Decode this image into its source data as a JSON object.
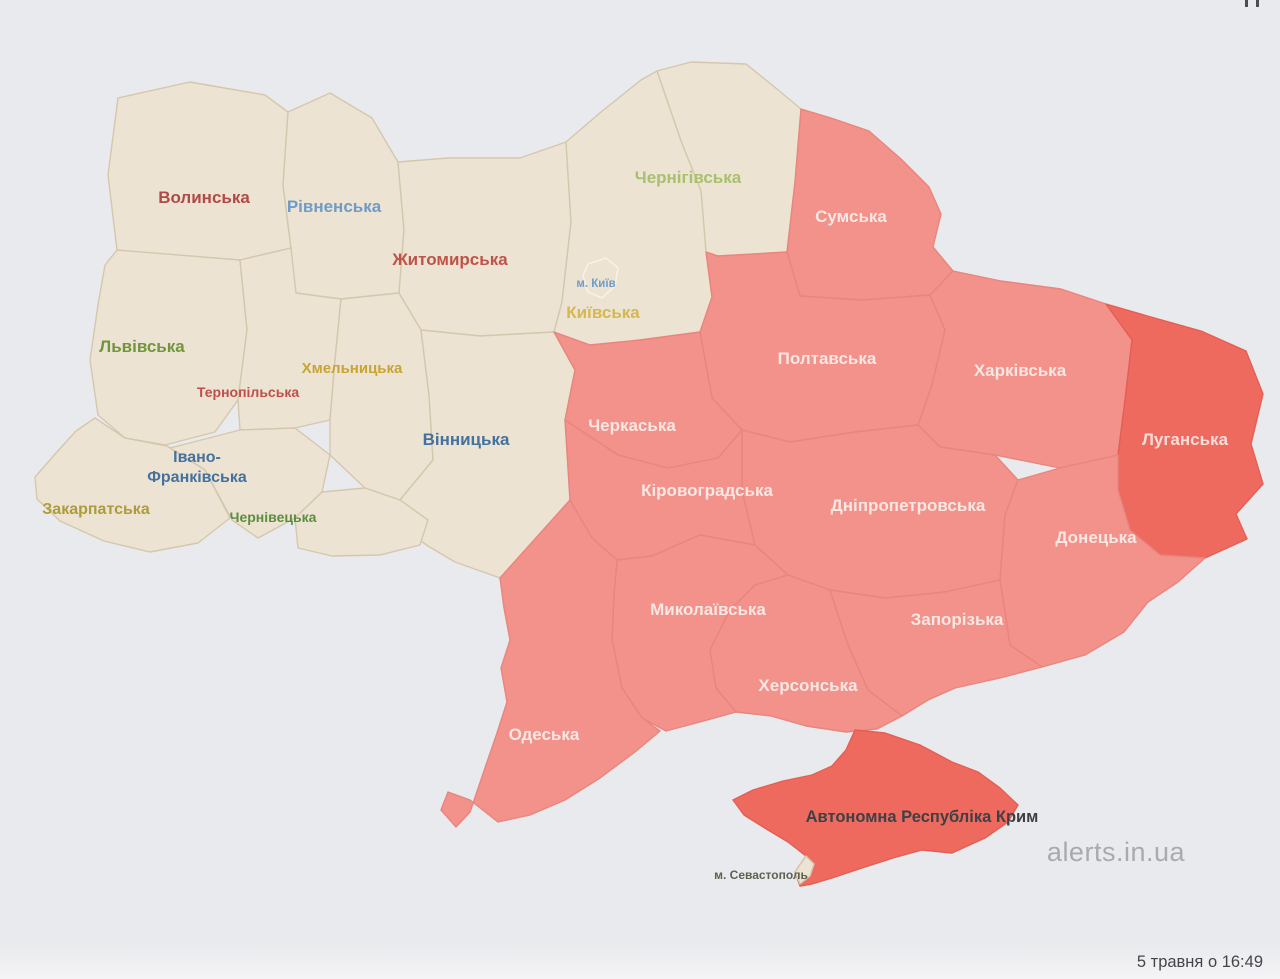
{
  "app": {
    "watermark": "alerts.in.ua",
    "timestamp": "5 травня о 16:49"
  },
  "map": {
    "description": "Ukraine air-raid alert map: western/northern oblasts without alert (beige), eastern/southern oblasts with active alert (salmon), Luhansk and Crimea highlighted (deep red)",
    "colors": {
      "background": "#e9eaed",
      "no_alert_fill": "#ece3d2",
      "no_alert_border": "#d5c7ae",
      "alert_fill": "#f2928a",
      "alert_border": "#e9857d",
      "alert_strong_fill": "#ee6a5f",
      "label_light": "#f8e7e2",
      "label_dark": "#3e4046"
    },
    "regions": [
      {
        "id": "volyn",
        "name": "Волинська",
        "status": "no_alert",
        "label_color": "#b04a48"
      },
      {
        "id": "rivne",
        "name": "Рівненська",
        "status": "no_alert",
        "label_color": "#6f9cc7"
      },
      {
        "id": "zhytomyr",
        "name": "Житомирська",
        "status": "no_alert",
        "label_color": "#bf5349"
      },
      {
        "id": "chernihiv",
        "name": "Чернігівська",
        "status": "no_alert",
        "label_color": "#a9c06f"
      },
      {
        "id": "kyiv_oblast",
        "name": "Київська",
        "status": "no_alert",
        "label_color": "#d6b84e"
      },
      {
        "id": "kyiv_city",
        "name": "м. Київ",
        "status": "no_alert",
        "label_color": "#6f9cc7"
      },
      {
        "id": "lviv",
        "name": "Львівська",
        "status": "no_alert",
        "label_color": "#71953d"
      },
      {
        "id": "ternopil",
        "name": "Тернопільська",
        "status": "no_alert",
        "label_color": "#bf4f4a"
      },
      {
        "id": "khmelnytskyi",
        "name": "Хмельницька",
        "status": "no_alert",
        "label_color": "#c7a433"
      },
      {
        "id": "vinnytsia",
        "name": "Вінницька",
        "status": "no_alert",
        "label_color": "#44729f"
      },
      {
        "id": "ivano_frankivsk",
        "name": "Івано-Франківська",
        "status": "no_alert",
        "label_color": "#44729f"
      },
      {
        "id": "zakarpattia",
        "name": "Закарпатська",
        "status": "no_alert",
        "label_color": "#ac9c3b"
      },
      {
        "id": "chernivtsi",
        "name": "Чернівецька",
        "status": "no_alert",
        "label_color": "#5e8c3f"
      },
      {
        "id": "sumy",
        "name": "Сумська",
        "status": "alert",
        "label_color": "#f8e7e2"
      },
      {
        "id": "poltava",
        "name": "Полтавська",
        "status": "alert",
        "label_color": "#f8e7e2"
      },
      {
        "id": "kharkiv",
        "name": "Харківська",
        "status": "alert",
        "label_color": "#f8e7e2"
      },
      {
        "id": "luhansk",
        "name": "Луганська",
        "status": "alert_strong",
        "label_color": "#f8ddd8"
      },
      {
        "id": "cherkasy",
        "name": "Черкаська",
        "status": "alert",
        "label_color": "#f8e7e2"
      },
      {
        "id": "kirovohrad",
        "name": "Кіровоградська",
        "status": "alert",
        "label_color": "#f8e7e2"
      },
      {
        "id": "dnipro",
        "name": "Дніпропетровська",
        "status": "alert",
        "label_color": "#f8e7e2"
      },
      {
        "id": "donetsk",
        "name": "Донецька",
        "status": "alert",
        "label_color": "#f8e7e2"
      },
      {
        "id": "zaporizhzhia",
        "name": "Запорізька",
        "status": "alert",
        "label_color": "#f8e7e2"
      },
      {
        "id": "mykolaiv",
        "name": "Миколаївська",
        "status": "alert",
        "label_color": "#f8e7e2"
      },
      {
        "id": "kherson",
        "name": "Херсонська",
        "status": "alert",
        "label_color": "#f8e7e2"
      },
      {
        "id": "odesa",
        "name": "Одеська",
        "status": "alert",
        "label_color": "#f8e7e2"
      },
      {
        "id": "crimea",
        "name": "Автономна Республіка Крим",
        "status": "alert_strong",
        "label_color": "#3e4046"
      },
      {
        "id": "sevastopol",
        "name": "м. Севастополь",
        "status": "no_alert",
        "label_color": "#5c6150"
      }
    ]
  }
}
